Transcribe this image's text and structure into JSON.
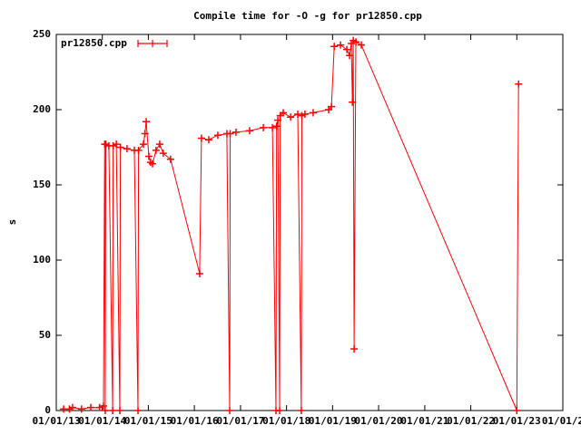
{
  "chart_data": {
    "type": "line",
    "title": "Compile time for -O -g for pr12850.cpp",
    "ylabel": "s",
    "legend": "top-left",
    "grid": false,
    "xlim": [
      "2013-01-01",
      "2024-01-01"
    ],
    "xticks": [
      {
        "value": "2013-01-01",
        "label": "01/01/13"
      },
      {
        "value": "2014-01-01",
        "label": "01/01/14"
      },
      {
        "value": "2015-01-01",
        "label": "01/01/15"
      },
      {
        "value": "2016-01-01",
        "label": "01/01/16"
      },
      {
        "value": "2017-01-01",
        "label": "01/01/17"
      },
      {
        "value": "2018-01-01",
        "label": "01/01/18"
      },
      {
        "value": "2019-01-01",
        "label": "01/01/19"
      },
      {
        "value": "2020-01-01",
        "label": "01/01/20"
      },
      {
        "value": "2021-01-01",
        "label": "01/01/21"
      },
      {
        "value": "2022-01-01",
        "label": "01/01/22"
      },
      {
        "value": "2023-01-01",
        "label": "01/01/23"
      },
      {
        "value": "2024-01-01",
        "label": "01/01/2"
      }
    ],
    "ylim": [
      0,
      250
    ],
    "yticks": [
      0,
      50,
      100,
      150,
      200,
      250
    ],
    "x": [
      "2013-02-28",
      "2013-04-15",
      "2013-05-10",
      "2013-07-20",
      "2013-10-01",
      "2013-12-10",
      "2014-01-10",
      "2014-01-20",
      "2014-01-24",
      "2014-01-28",
      "2014-02-22",
      "2014-03-24",
      "2014-03-28",
      "2014-04-22",
      "2014-05-20",
      "2014-05-24",
      "2014-07-16",
      "2014-09-12",
      "2014-10-11",
      "2014-10-15",
      "2014-11-23",
      "2014-12-05",
      "2014-12-15",
      "2015-01-05",
      "2015-01-19",
      "2015-02-03",
      "2015-03-03",
      "2015-04-01",
      "2015-04-29",
      "2015-06-26",
      "2016-02-12",
      "2016-02-26",
      "2016-04-24",
      "2016-07-05",
      "2016-09-15",
      "2016-10-07",
      "2016-10-11",
      "2016-11-26",
      "2017-03-14",
      "2017-07-01",
      "2017-09-11",
      "2017-10-09",
      "2017-10-14",
      "2017-10-24",
      "2017-11-07",
      "2017-11-12",
      "2017-12-06",
      "2018-02-02",
      "2018-03-31",
      "2018-04-28",
      "2018-05-02",
      "2018-05-27",
      "2018-07-31",
      "2018-12-01",
      "2018-12-23",
      "2019-01-14",
      "2019-03-05",
      "2019-04-24",
      "2019-05-16",
      "2019-05-30",
      "2019-06-07",
      "2019-06-14",
      "2019-06-21",
      "2019-07-05",
      "2019-08-17",
      "2023-01-01",
      "2023-01-15"
    ],
    "series": [
      {
        "name": "pr12850.cpp",
        "color": "#ff0000",
        "values": [
          1,
          1,
          2,
          1,
          2,
          2,
          3,
          177,
          0,
          177,
          176,
          0,
          176,
          177,
          0,
          175,
          174,
          173,
          0,
          173,
          177,
          184,
          192,
          169,
          165,
          164,
          173,
          177,
          171,
          167,
          91,
          181,
          180,
          183,
          184,
          0,
          184,
          185,
          186,
          188,
          188,
          0,
          189,
          193,
          0,
          196,
          198,
          195,
          197,
          0,
          196,
          197,
          198,
          200,
          202,
          242,
          243,
          240,
          236,
          244,
          205,
          246,
          41,
          245,
          243,
          0,
          217
        ]
      }
    ]
  }
}
